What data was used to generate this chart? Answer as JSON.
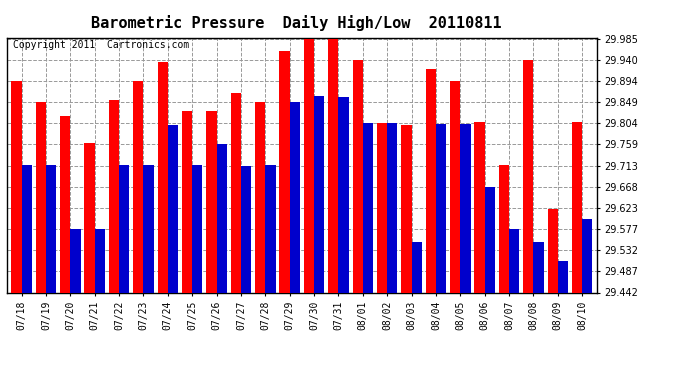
{
  "title": "Barometric Pressure  Daily High/Low  20110811",
  "copyright": "Copyright 2011  Cartronics.com",
  "dates": [
    "07/18",
    "07/19",
    "07/20",
    "07/21",
    "07/22",
    "07/23",
    "07/24",
    "07/25",
    "07/26",
    "07/27",
    "07/28",
    "07/29",
    "07/30",
    "07/31",
    "08/01",
    "08/02",
    "08/03",
    "08/04",
    "08/05",
    "08/06",
    "08/07",
    "08/08",
    "08/09",
    "08/10"
  ],
  "highs": [
    29.895,
    29.849,
    29.82,
    29.762,
    29.855,
    29.895,
    29.935,
    29.83,
    29.83,
    29.87,
    29.849,
    29.96,
    29.985,
    29.985,
    29.94,
    29.804,
    29.8,
    29.92,
    29.895,
    29.808,
    29.714,
    29.94,
    29.62,
    29.808
  ],
  "lows": [
    29.714,
    29.714,
    29.577,
    29.577,
    29.714,
    29.714,
    29.8,
    29.714,
    29.759,
    29.713,
    29.714,
    29.849,
    29.862,
    29.86,
    29.804,
    29.804,
    29.55,
    29.803,
    29.803,
    29.668,
    29.577,
    29.55,
    29.51,
    29.6
  ],
  "ymin": 29.442,
  "ymax": 29.985,
  "yticks": [
    29.442,
    29.487,
    29.532,
    29.577,
    29.623,
    29.668,
    29.713,
    29.759,
    29.804,
    29.849,
    29.894,
    29.94,
    29.985
  ],
  "high_color": "#ff0000",
  "low_color": "#0000cc",
  "bg_color": "#ffffff",
  "grid_color": "#999999",
  "title_fontsize": 11,
  "copyright_fontsize": 7
}
